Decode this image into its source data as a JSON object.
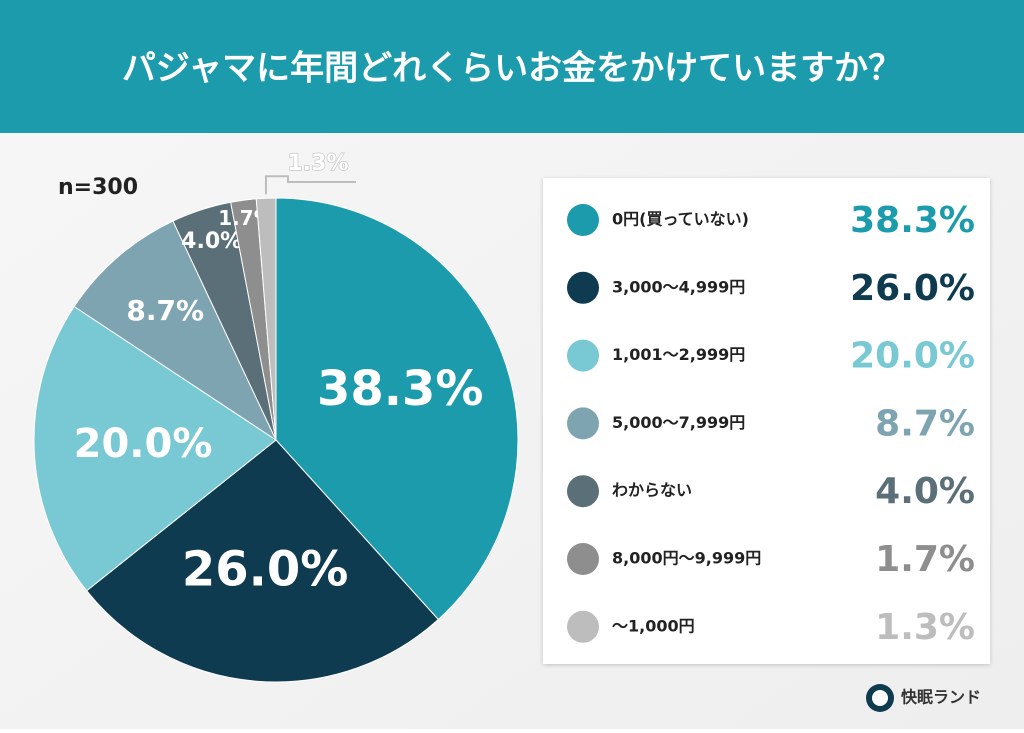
{
  "chart_data": {
    "type": "pie",
    "title": "パジャマに年間どれくらいお金をかけていますか？",
    "subtitle": "n=300",
    "categories": [
      "0円(買っていない)",
      "3,000〜4,999円",
      "1,001〜2,999円",
      "5,000〜7,999円",
      "わからない",
      "8,000円〜9,999円",
      "〜1,000円"
    ],
    "values": [
      38.3,
      26.0,
      20.0,
      8.7,
      4.0,
      1.7,
      1.3
    ],
    "value_labels": [
      "38.3%",
      "26.0%",
      "20.0%",
      "8.7%",
      "4.0%",
      "1.7%",
      "1.3%"
    ],
    "colors": [
      "#1b9bab",
      "#0e3b4f",
      "#78c9d3",
      "#7fa4b1",
      "#5b6f79",
      "#8e8e8e",
      "#bdbdbd"
    ],
    "legend": "right"
  },
  "brand": "快眠ランド"
}
